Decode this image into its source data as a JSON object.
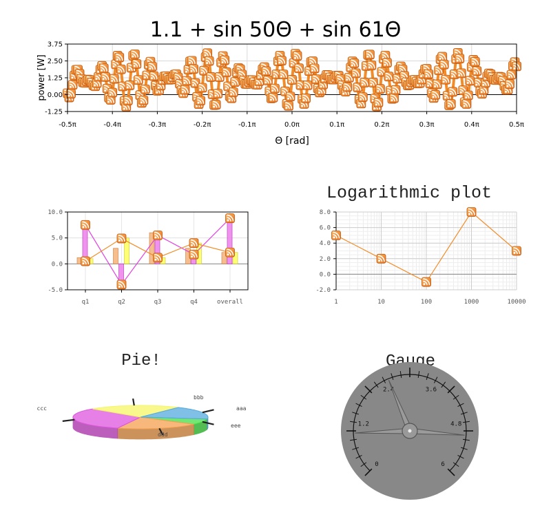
{
  "colors": {
    "orange": "#f28c28",
    "orange_dark": "#d9731a",
    "magenta": "#e040e0",
    "pink_fill": "#ee88ee",
    "yellow": "#ffff66",
    "peach": "#f5b880",
    "gauge_bg": "#888888"
  },
  "chart_data": [
    {
      "type": "line",
      "title": "1.1 + sin 50Θ + sin 61Θ",
      "xlabel": "Θ [rad]",
      "ylabel": "power [W]",
      "x_ticks": [
        "-0.5π",
        "-0.4π",
        "-0.3π",
        "-0.2π",
        "-0.1π",
        "0.0π",
        "0.1π",
        "0.2π",
        "0.3π",
        "0.4π",
        "0.5π"
      ],
      "y_ticks": [
        "-1.25",
        "0.00",
        "1.25",
        "2.50",
        "3.75"
      ],
      "xlim": [
        -1.5708,
        1.5708
      ],
      "ylim": [
        -1.25,
        3.75
      ],
      "function": "1.1 + sin 50Θ + sin 61Θ",
      "grid": true,
      "marker": "rss-icon"
    },
    {
      "type": "bar",
      "categories": [
        "q1",
        "q2",
        "q3",
        "q4",
        "overall"
      ],
      "y_ticks": [
        "-5.0",
        "0.0",
        "5.0",
        "10.0"
      ],
      "ylim": [
        -5,
        10
      ],
      "series": [
        {
          "values": [
            1.2,
            3.0,
            6.0,
            3.0,
            2.2
          ]
        },
        {
          "values": [
            7.5,
            -4.0,
            5.5,
            2.0,
            8.8
          ]
        },
        {
          "values": [
            1.0,
            5.0,
            1.2,
            4.0,
            2.2
          ]
        }
      ],
      "line_series": [
        {
          "values": [
            7.5,
            -4.0,
            5.5,
            1.8,
            8.8
          ]
        },
        {
          "values": [
            0.5,
            4.9,
            1.2,
            4.0,
            2.2
          ]
        }
      ],
      "grid": true,
      "marker": "rss-icon"
    },
    {
      "type": "line",
      "title": "Logarithmic plot",
      "x": [
        1,
        10,
        100,
        1000,
        10000
      ],
      "values": [
        5.0,
        2.0,
        -1.0,
        8.0,
        3.0
      ],
      "x_ticks": [
        "1",
        "10",
        "100",
        "1000",
        "10000"
      ],
      "y_ticks": [
        "-2.0",
        "0.0",
        "2.0",
        "4.0",
        "6.0",
        "8.0"
      ],
      "ylim": [
        -2,
        8
      ],
      "x_scale": "log",
      "grid": true,
      "marker": "rss-icon"
    },
    {
      "type": "pie",
      "title": "Pie!",
      "labels": [
        "aaa",
        "bbb",
        "ccc",
        "ddd",
        "eee"
      ],
      "values": [
        8,
        20,
        32,
        22,
        18
      ],
      "colors": [
        "#44dd44",
        "#f5a050",
        "#dd55dd",
        "#f5f566",
        "#55aadd"
      ]
    },
    {
      "type": "gauge",
      "title": "Gauge",
      "tick_labels": [
        "0",
        "1.2",
        "2.4",
        "3.6",
        "4.8",
        "6"
      ],
      "range": [
        0,
        6
      ],
      "needles": [
        2.5,
        0.95,
        5.1
      ]
    }
  ]
}
